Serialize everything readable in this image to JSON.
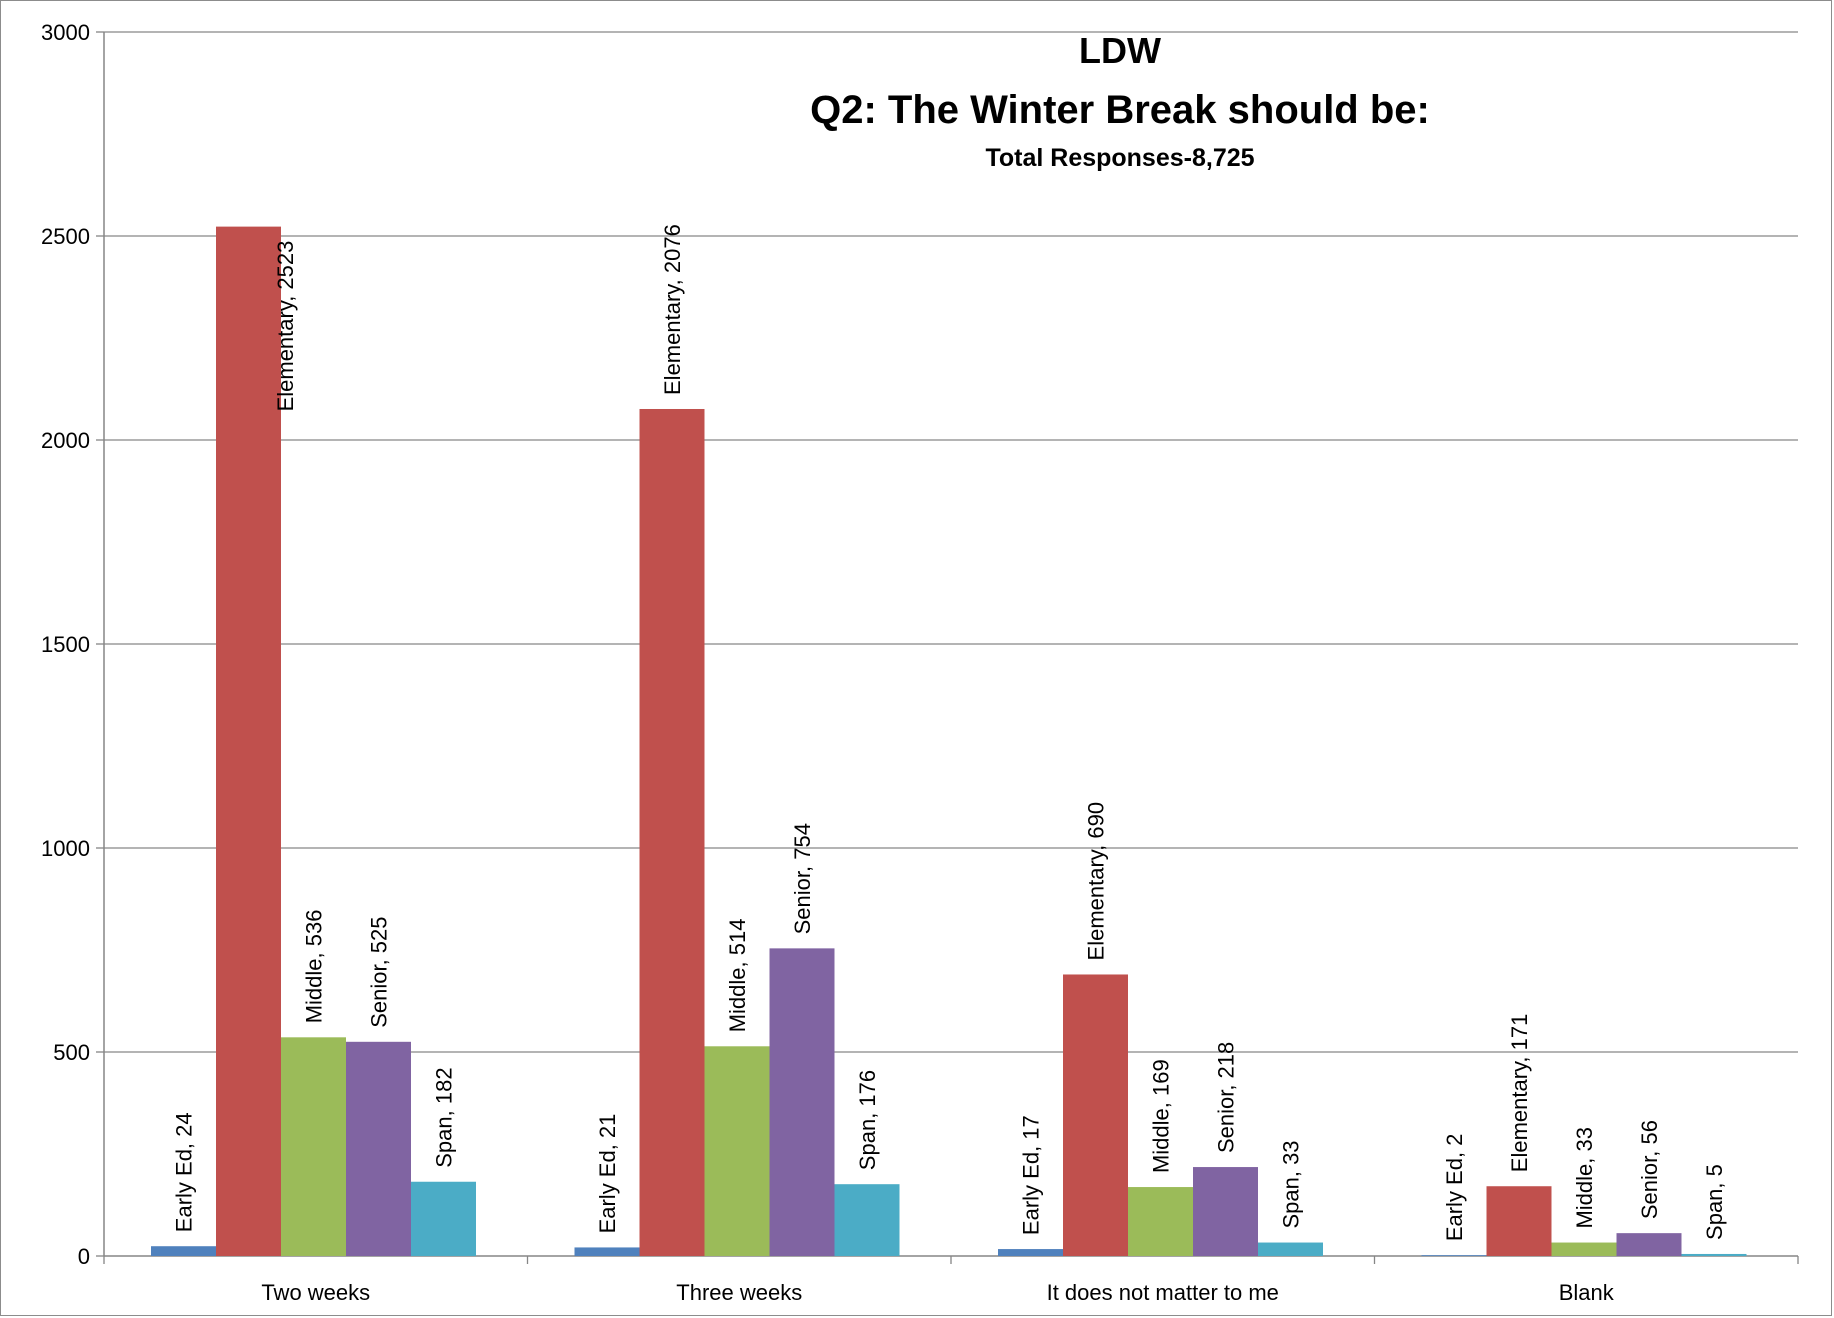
{
  "chart_data": {
    "type": "bar",
    "title_lines": [
      "LDW",
      "Q2: The Winter Break should be:"
    ],
    "subtitle": "Total Responses-8,725",
    "xlabel": "",
    "ylabel": "",
    "ylim": [
      0,
      3000
    ],
    "yticks": [
      0,
      500,
      1000,
      1500,
      2000,
      2500,
      3000
    ],
    "grid": true,
    "legend": "none",
    "categories": [
      "Two weeks",
      "Three weeks",
      "It does not matter to me",
      "Blank"
    ],
    "series": [
      {
        "name": "Early Ed",
        "color": "#4f81bd",
        "values": [
          24,
          21,
          17,
          2
        ]
      },
      {
        "name": "Elementary",
        "color": "#c0504d",
        "values": [
          2523,
          2076,
          690,
          171
        ]
      },
      {
        "name": "Middle",
        "color": "#9bbb59",
        "values": [
          536,
          514,
          169,
          33
        ]
      },
      {
        "name": "Senior",
        "color": "#8064a2",
        "values": [
          525,
          754,
          218,
          56
        ]
      },
      {
        "name": "Span",
        "color": "#4bacc6",
        "values": [
          182,
          176,
          33,
          5
        ]
      }
    ],
    "data_label_format": "{series}, {value}"
  }
}
